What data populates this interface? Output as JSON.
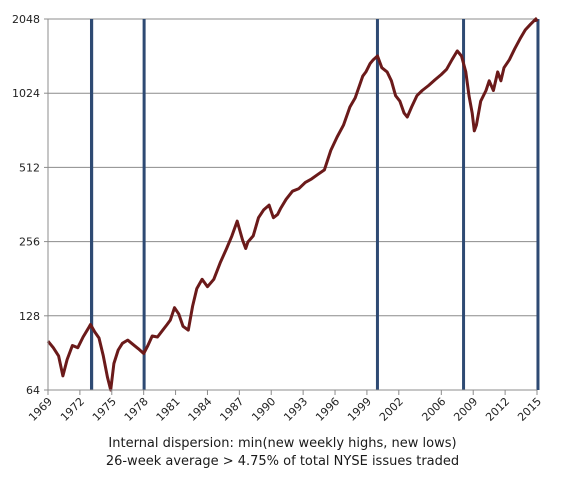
{
  "chart_data": {
    "type": "line",
    "title": "",
    "xlabel": "",
    "ylabel": "",
    "y_scale": "log2",
    "ylim": [
      64,
      2048
    ],
    "xlim": [
      1969,
      2015
    ],
    "y_ticks": [
      64,
      128,
      256,
      512,
      1024,
      2048
    ],
    "y_tick_labels": [
      "64",
      "128",
      "256",
      "512",
      "1024",
      "2048"
    ],
    "x_ticks": [
      1969,
      1972,
      1975,
      1978,
      1981,
      1984,
      1987,
      1990,
      1993,
      1996,
      1999,
      2002,
      2006,
      2009,
      2012,
      2015
    ],
    "x_tick_labels": [
      "1969",
      "1972",
      "1975",
      "1978",
      "1981",
      "1984",
      "1987",
      "1990",
      "1993",
      "1996",
      "1999",
      "2002",
      "2006",
      "2009",
      "2012",
      "2015"
    ],
    "grid": "horizontal",
    "series": [
      {
        "name": "",
        "color": "#6b1a1a",
        "x": [
          1969.0,
          1969.5,
          1970.0,
          1970.4,
          1970.8,
          1971.3,
          1971.8,
          1972.3,
          1972.8,
          1973.0,
          1973.4,
          1973.8,
          1974.2,
          1974.6,
          1974.9,
          1975.2,
          1975.6,
          1976.0,
          1976.5,
          1977.0,
          1977.5,
          1978.0,
          1978.4,
          1978.8,
          1979.3,
          1979.8,
          1980.2,
          1980.5,
          1980.9,
          1981.3,
          1981.7,
          1982.2,
          1982.6,
          1983.0,
          1983.5,
          1984.0,
          1984.6,
          1985.2,
          1985.8,
          1986.3,
          1986.8,
          1987.3,
          1987.6,
          1987.8,
          1988.3,
          1988.8,
          1989.3,
          1989.8,
          1990.2,
          1990.6,
          1990.9,
          1991.4,
          1992.0,
          1992.6,
          1993.2,
          1993.8,
          1994.4,
          1995.0,
          1995.6,
          1996.2,
          1996.8,
          1997.4,
          1997.9,
          1998.3,
          1998.6,
          1998.9,
          1999.3,
          1999.6,
          2000.0,
          2000.4,
          2000.9,
          2001.3,
          2001.7,
          2002.1,
          2002.5,
          2002.8,
          2003.2,
          2003.7,
          2004.2,
          2004.8,
          2005.4,
          2006.0,
          2006.5,
          2007.0,
          2007.5,
          2007.9,
          2008.3,
          2008.6,
          2008.9,
          2009.1,
          2009.3,
          2009.7,
          2010.2,
          2010.5,
          2010.9,
          2011.3,
          2011.6,
          2011.9,
          2012.4,
          2012.9,
          2013.4,
          2013.9,
          2014.4,
          2014.9,
          2015.0
        ],
        "y": [
          101,
          95,
          88,
          73,
          85,
          97,
          95,
          105,
          114,
          118,
          110,
          104,
          88,
          72,
          64,
          82,
          93,
          99,
          102,
          98,
          94,
          90,
          97,
          106,
          105,
          112,
          118,
          123,
          138,
          130,
          116,
          112,
          140,
          165,
          180,
          168,
          180,
          210,
          240,
          270,
          310,
          260,
          240,
          255,
          270,
          320,
          345,
          360,
          320,
          330,
          350,
          380,
          410,
          420,
          445,
          460,
          480,
          500,
          600,
          680,
          760,
          900,
          980,
          1100,
          1200,
          1250,
          1350,
          1400,
          1450,
          1300,
          1250,
          1150,
          1000,
          950,
          850,
          820,
          900,
          1000,
          1050,
          1100,
          1160,
          1220,
          1280,
          1400,
          1520,
          1450,
          1250,
          1000,
          850,
          720,
          760,
          950,
          1050,
          1150,
          1050,
          1250,
          1150,
          1300,
          1400,
          1550,
          1700,
          1850,
          1950,
          2050,
          2000
        ]
      }
    ],
    "shaded_events": [
      {
        "x": 1972.95,
        "width_years": 0.3
      },
      {
        "x": 1977.9,
        "width_years": 0.22
      },
      {
        "x": 1999.85,
        "width_years": 0.18
      },
      {
        "x": 2007.95,
        "width_years": 0.15
      },
      {
        "x": 2014.95,
        "width_years": 0.12
      }
    ],
    "event_color": "#2e4a73",
    "annotations": [
      "Internal dispersion: min(new weekly highs, new lows)",
      "26-week average > 4.75% of total NYSE issues traded"
    ]
  }
}
